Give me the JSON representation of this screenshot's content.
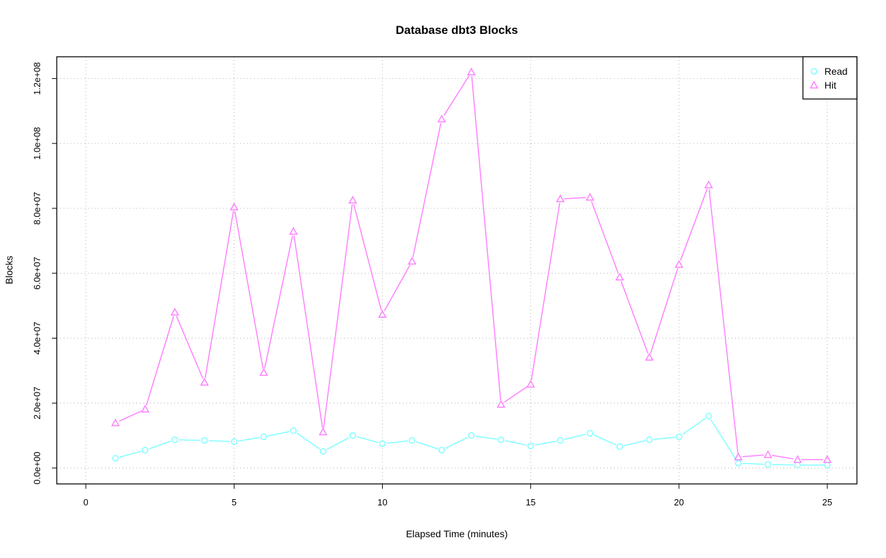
{
  "chart_data": {
    "type": "line",
    "title": "Database dbt3 Blocks",
    "xlabel": "Elapsed Time (minutes)",
    "ylabel": "Blocks",
    "xlim": [
      -0.98,
      26.0
    ],
    "ylim": [
      -4900000,
      126700000
    ],
    "xticks": [
      0,
      5,
      10,
      15,
      20,
      25
    ],
    "xtick_labels": [
      "0",
      "5",
      "10",
      "15",
      "20",
      "25"
    ],
    "yticks": [
      0,
      20000000,
      40000000,
      60000000,
      80000000,
      100000000,
      120000000
    ],
    "ytick_labels": [
      "0.0e+00",
      "2.0e+07",
      "4.0e+07",
      "6.0e+07",
      "8.0e+07",
      "1.0e+08",
      "1.2e+08"
    ],
    "grid": true,
    "legend_position": "top-right",
    "x": [
      1,
      2,
      3,
      4,
      5,
      6,
      7,
      8,
      9,
      10,
      11,
      12,
      13,
      14,
      15,
      16,
      17,
      18,
      19,
      20,
      21,
      22,
      23,
      24,
      25
    ],
    "series": [
      {
        "name": "Read",
        "color": "#80ffff",
        "marker": "circle",
        "values": [
          3000000,
          5500000,
          8700000,
          8500000,
          8100000,
          9600000,
          11500000,
          5100000,
          10000000,
          7500000,
          8500000,
          5500000,
          10000000,
          8700000,
          6800000,
          8500000,
          10700000,
          6600000,
          8700000,
          9600000,
          16000000,
          1500000,
          1100000,
          900000,
          900000
        ]
      },
      {
        "name": "Hit",
        "color": "#ff80ff",
        "marker": "triangle",
        "values": [
          13900000,
          18100000,
          48000000,
          26400000,
          80400000,
          29400000,
          72900000,
          11100000,
          82500000,
          47300000,
          63700000,
          107500000,
          122000000,
          19600000,
          25800000,
          82900000,
          83400000,
          58800000,
          34100000,
          62700000,
          87200000,
          3400000,
          4100000,
          2600000,
          2600000
        ]
      }
    ]
  }
}
